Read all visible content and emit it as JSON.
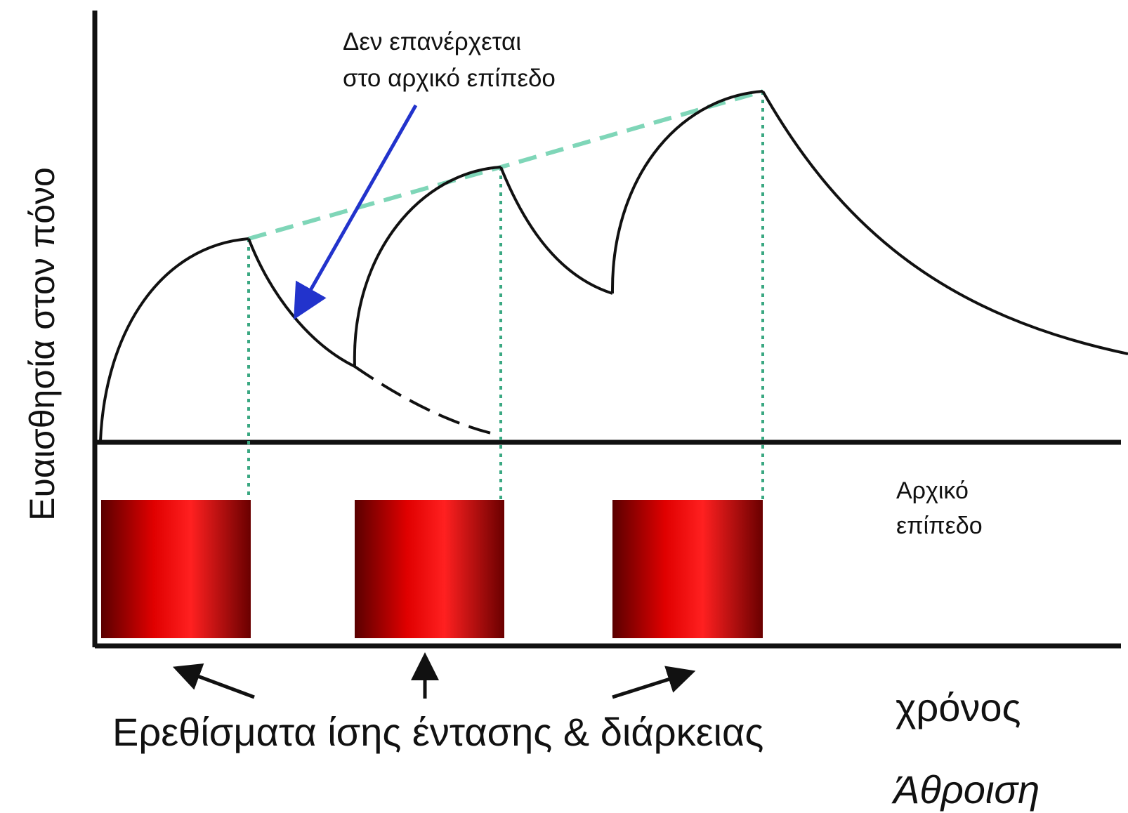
{
  "diagram": {
    "y_axis_label": "Ευαισθησία στον πόνο",
    "annotation": {
      "line1": "Δεν επανέρχεται",
      "line2": "στο αρχικό επίπεδο"
    },
    "baseline_label": {
      "line1": "Αρχικό",
      "line2": "επίπεδο"
    },
    "stimuli_label": "Ερεθίσματα ίσης έντασης & διάρκειας",
    "time_label": "χρόνος",
    "summation_label": "Άθροιση",
    "stimulus_count": 3,
    "colors": {
      "curve": "#111111",
      "peak_trend": "#7fd6b8",
      "guide_lines": "#3aa882",
      "annotation_arrow": "#2233cc",
      "stimulus_dark": "#5a0000",
      "stimulus_bright": "#ff1a1a"
    }
  }
}
